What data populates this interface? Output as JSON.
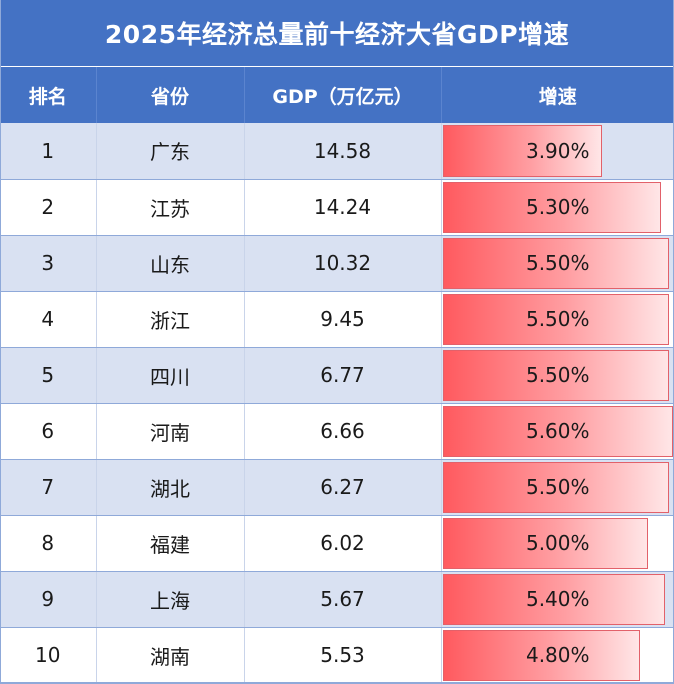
{
  "title": "2025年经济总量前十经济大省GDP增速",
  "headers": {
    "rank": "排名",
    "province": "省份",
    "gdp": "GDP（万亿元）",
    "growth": "增速"
  },
  "colors": {
    "header_bg": "#4472c4",
    "row_band": "#d9e1f2",
    "bar_start": "#ff5a5f",
    "bar_end": "#ffe6e7"
  },
  "bar_scale_max_percent": 5.6,
  "rows": [
    {
      "rank": "1",
      "province": "广东",
      "gdp": "14.58",
      "growth": "3.90%",
      "growth_value": 3.9
    },
    {
      "rank": "2",
      "province": "江苏",
      "gdp": "14.24",
      "growth": "5.30%",
      "growth_value": 5.3
    },
    {
      "rank": "3",
      "province": "山东",
      "gdp": "10.32",
      "growth": "5.50%",
      "growth_value": 5.5
    },
    {
      "rank": "4",
      "province": "浙江",
      "gdp": "9.45",
      "growth": "5.50%",
      "growth_value": 5.5
    },
    {
      "rank": "5",
      "province": "四川",
      "gdp": "6.77",
      "growth": "5.50%",
      "growth_value": 5.5
    },
    {
      "rank": "6",
      "province": "河南",
      "gdp": "6.66",
      "growth": "5.60%",
      "growth_value": 5.6
    },
    {
      "rank": "7",
      "province": "湖北",
      "gdp": "6.27",
      "growth": "5.50%",
      "growth_value": 5.5
    },
    {
      "rank": "8",
      "province": "福建",
      "gdp": "6.02",
      "growth": "5.00%",
      "growth_value": 5.0
    },
    {
      "rank": "9",
      "province": "上海",
      "gdp": "5.67",
      "growth": "5.40%",
      "growth_value": 5.4
    },
    {
      "rank": "10",
      "province": "湖南",
      "gdp": "5.53",
      "growth": "4.80%",
      "growth_value": 4.8
    }
  ]
}
